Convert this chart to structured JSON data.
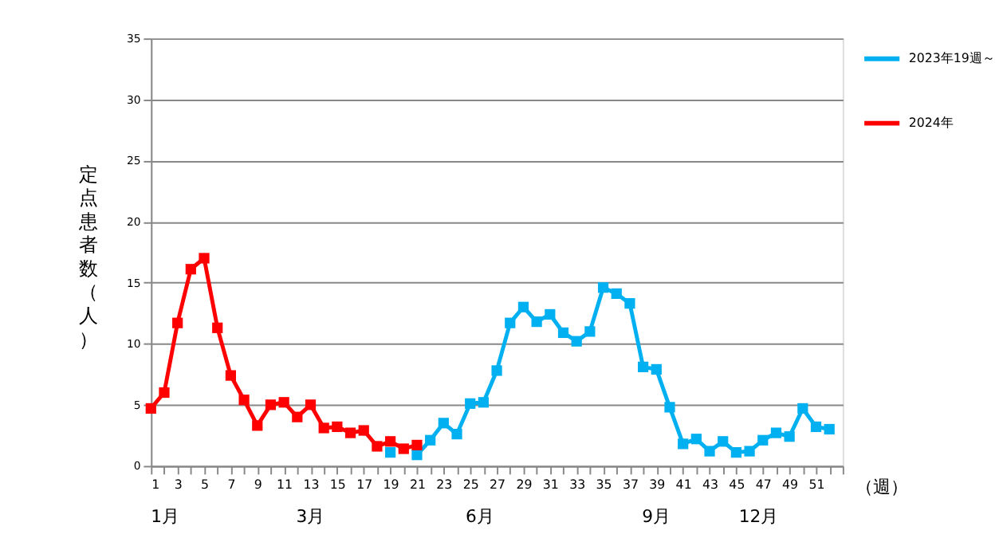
{
  "chart_data": {
    "type": "line",
    "ylabel": "定点患者数（人）",
    "xlabel": "（週）",
    "xlim": [
      1,
      53
    ],
    "xticks": [
      1,
      {
        "value": 2,
        "label": null
      },
      3,
      {
        "value": 4,
        "label": null
      },
      5,
      {
        "value": 6,
        "label": null
      },
      7,
      {
        "value": 8,
        "label": null
      },
      9,
      {
        "value": 10,
        "label": null
      },
      11,
      {
        "value": 12,
        "label": null
      },
      13,
      {
        "value": 14,
        "label": null
      },
      15,
      {
        "value": 16,
        "label": null
      },
      17,
      {
        "value": 18,
        "label": null
      },
      19,
      {
        "value": 20,
        "label": null
      },
      21,
      {
        "value": 22,
        "label": null
      },
      23,
      {
        "value": 24,
        "label": null
      },
      25,
      {
        "value": 26,
        "label": null
      },
      27,
      {
        "value": 28,
        "label": null
      },
      29,
      {
        "value": 30,
        "label": null
      },
      31,
      {
        "value": 32,
        "label": null
      },
      33,
      {
        "value": 34,
        "label": null
      },
      35,
      {
        "value": 36,
        "label": null
      },
      37,
      {
        "value": 38,
        "label": null
      },
      39,
      {
        "value": 40,
        "label": null
      },
      41,
      {
        "value": 42,
        "label": null
      },
      43,
      {
        "value": 44,
        "label": null
      },
      45,
      {
        "value": 46,
        "label": null
      },
      47,
      {
        "value": 48,
        "label": null
      },
      49,
      {
        "value": 50,
        "label": null
      },
      51,
      {
        "value": 52,
        "label": null
      },
      {
        "value": 53,
        "label": null
      }
    ],
    "ylim": [
      0,
      35
    ],
    "yticks": [
      0,
      5,
      10,
      15,
      20,
      25,
      30,
      35
    ],
    "grid": "y",
    "legend": "right",
    "marker": "square",
    "line_style": "solid",
    "series": [
      {
        "name": "2023年19週～",
        "color": "#00b0f0",
        "x": [
          19,
          20,
          21,
          22,
          23,
          24,
          25,
          26,
          27,
          28,
          29,
          30,
          31,
          32,
          33,
          34,
          35,
          36,
          37,
          38,
          39,
          40,
          41,
          42,
          43,
          44,
          45,
          46,
          47,
          48,
          49,
          50,
          51,
          52
        ],
        "values": [
          1.1,
          null,
          0.9,
          2.1,
          3.5,
          2.6,
          5.1,
          5.2,
          7.8,
          11.7,
          13.0,
          11.8,
          12.4,
          10.9,
          10.2,
          11.0,
          14.6,
          14.1,
          13.3,
          8.1,
          7.9,
          4.8,
          1.8,
          2.2,
          1.2,
          2.0,
          1.1,
          1.2,
          2.1,
          2.7,
          2.4,
          4.7,
          3.2,
          3.0
        ]
      },
      {
        "name": "2024年",
        "color": "#ff0000",
        "x": [
          1,
          2,
          3,
          4,
          5,
          6,
          7,
          8,
          9,
          10,
          11,
          12,
          13,
          14,
          15,
          16,
          17,
          18,
          19,
          20,
          21
        ],
        "values": [
          4.7,
          6.0,
          11.7,
          16.1,
          17.0,
          11.3,
          7.4,
          5.4,
          3.3,
          5.0,
          5.2,
          4.0,
          5.0,
          3.1,
          3.2,
          2.7,
          2.9,
          1.6,
          2.0,
          1.4,
          1.7
        ]
      }
    ],
    "annotations": [
      "1月",
      "3月",
      "6月",
      "9月",
      "12月"
    ]
  }
}
